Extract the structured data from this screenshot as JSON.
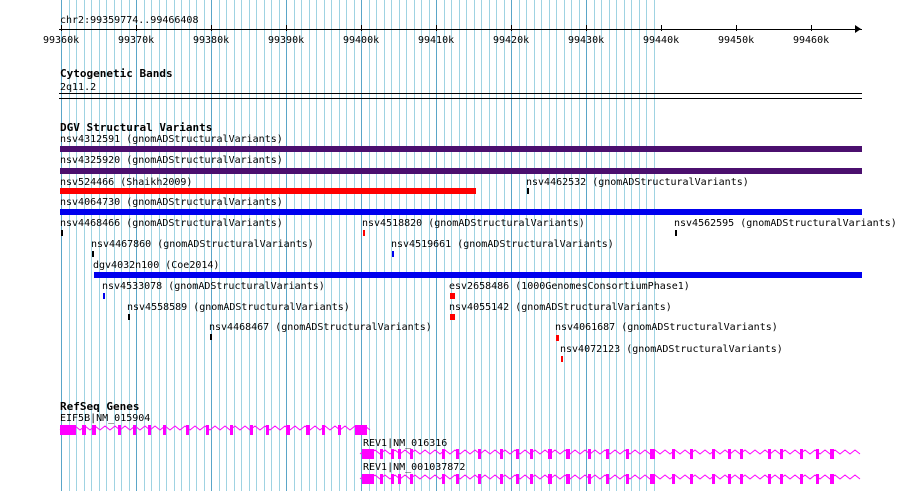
{
  "location": "chr2:99359774..99466408",
  "ruler": {
    "labels": [
      "99360k",
      "99370k",
      "99380k",
      "99390k",
      "99400k",
      "99410k",
      "99420k",
      "99430k",
      "99440k",
      "99450k",
      "99460k"
    ]
  },
  "tracks": {
    "cytobands": {
      "title": "Cytogenetic Bands",
      "band": "2q11.2"
    },
    "dgv": {
      "title": "DGV Structural Variants"
    },
    "refseq": {
      "title": "RefSeq Genes"
    }
  },
  "variants": [
    {
      "label": "nsv4312591 (gnomADStructuralVariants)"
    },
    {
      "label": "nsv4325920 (gnomADStructuralVariants)"
    },
    {
      "label": "nsv524466 (Shaikh2009)"
    },
    {
      "label": "nsv4462532 (gnomADStructuralVariants)"
    },
    {
      "label": "nsv4064730 (gnomADStructuralVariants)"
    },
    {
      "label": "nsv4468466 (gnomADStructuralVariants)"
    },
    {
      "label": "nsv4518820 (gnomADStructuralVariants)"
    },
    {
      "label": "nsv4562595 (gnomADStructuralVariants)"
    },
    {
      "label": "nsv4467860 (gnomADStructuralVariants)"
    },
    {
      "label": "nsv4519661 (gnomADStructuralVariants)"
    },
    {
      "label": "dgv4032n100 (Coe2014)"
    },
    {
      "label": "nsv4533078 (gnomADStructuralVariants)"
    },
    {
      "label": "esv2658486 (1000GenomesConsortiumPhase1)"
    },
    {
      "label": "nsv4558589 (gnomADStructuralVariants)"
    },
    {
      "label": "nsv4055142 (gnomADStructuralVariants)"
    },
    {
      "label": "nsv4468467 (gnomADStructuralVariants)"
    },
    {
      "label": "nsv4061687 (gnomADStructuralVariants)"
    },
    {
      "label": "nsv4072123 (gnomADStructuralVariants)"
    }
  ],
  "genes": [
    {
      "label": "EIF5B|NM_015904"
    },
    {
      "label": "REV1|NM_016316"
    },
    {
      "label": "REV1|NM_001037872"
    }
  ],
  "colors": {
    "purple": "#4b0f6e",
    "red": "#ff0000",
    "blue": "#0000ee",
    "black": "#000000",
    "gene": "#ff00ff",
    "grid": "#9fd3e2"
  }
}
